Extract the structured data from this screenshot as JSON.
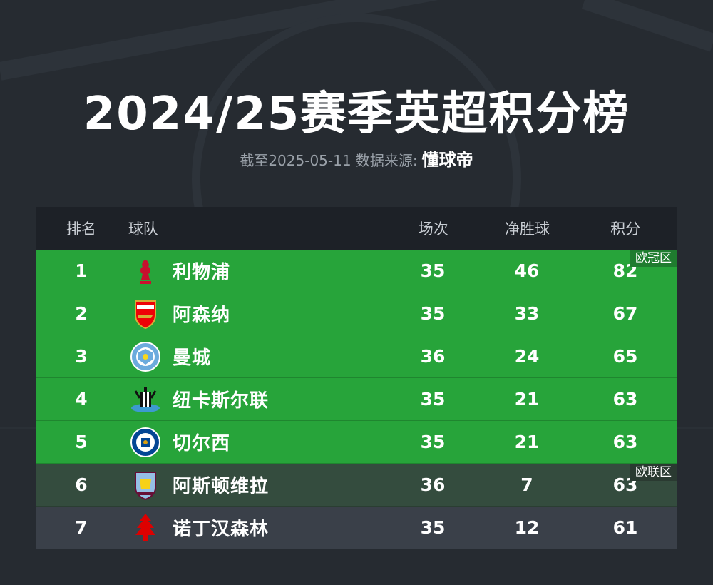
{
  "header": {
    "title": "2024/25赛季英超积分榜",
    "subtitle_prefix": "截至2025-05-11 数据来源:",
    "brand": "懂球帝"
  },
  "table": {
    "columns": {
      "rank": "排名",
      "team": "球队",
      "played": "场次",
      "goal_diff": "净胜球",
      "points": "积分"
    },
    "zones": {
      "champions_league": "欧冠区",
      "europa_league": "欧联区"
    },
    "colors": {
      "champions_league_row": "#27a43a",
      "europa_league_row": "#344c3e",
      "other_row": "#3a4049",
      "header_row": "#1d2127",
      "background": "#262b31"
    },
    "rows": [
      {
        "rank": "1",
        "team": "利物浦",
        "played": "35",
        "goal_diff": "46",
        "points": "82",
        "crest_icon": "liverpool-crest-icon"
      },
      {
        "rank": "2",
        "team": "阿森纳",
        "played": "35",
        "goal_diff": "33",
        "points": "67",
        "crest_icon": "arsenal-crest-icon"
      },
      {
        "rank": "3",
        "team": "曼城",
        "played": "36",
        "goal_diff": "24",
        "points": "65",
        "crest_icon": "manchester-city-crest-icon"
      },
      {
        "rank": "4",
        "team": "纽卡斯尔联",
        "played": "35",
        "goal_diff": "21",
        "points": "63",
        "crest_icon": "newcastle-crest-icon"
      },
      {
        "rank": "5",
        "team": "切尔西",
        "played": "35",
        "goal_diff": "21",
        "points": "63",
        "crest_icon": "chelsea-crest-icon"
      },
      {
        "rank": "6",
        "team": "阿斯顿维拉",
        "played": "36",
        "goal_diff": "7",
        "points": "63",
        "crest_icon": "aston-villa-crest-icon"
      },
      {
        "rank": "7",
        "team": "诺丁汉森林",
        "played": "35",
        "goal_diff": "12",
        "points": "61",
        "crest_icon": "nottingham-forest-crest-icon"
      }
    ]
  }
}
